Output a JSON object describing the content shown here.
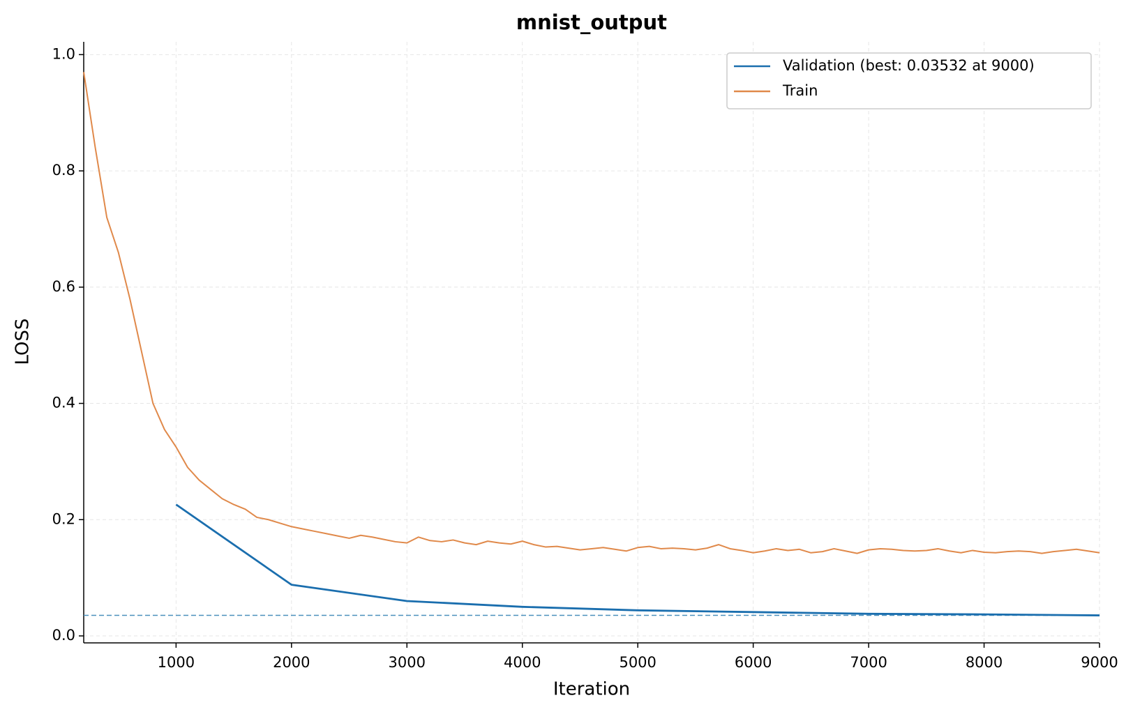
{
  "chart_data": {
    "type": "line",
    "title": "mnist_output",
    "x_label": "Iteration",
    "y_label": "LOSS",
    "xlim": [
      200,
      9000
    ],
    "ylim": [
      -0.012,
      1.022
    ],
    "xticks": [
      1000,
      2000,
      3000,
      4000,
      5000,
      6000,
      7000,
      8000,
      9000
    ],
    "yticks": [
      {
        "value": 0,
        "label": "0.0"
      },
      0.2,
      0.4,
      0.6,
      0.8,
      {
        "value": 1,
        "label": "1.0"
      }
    ],
    "grid": true,
    "legend": "upper right",
    "hline": {
      "value": 0.03532,
      "color": "#4a8fbd",
      "style": "dashed"
    },
    "series": [
      {
        "name": "Validation (best: 0.03532 at 9000)",
        "color": "#1a6eae",
        "x": [
          1000,
          2000,
          3000,
          4000,
          5000,
          6000,
          7000,
          8000,
          9000
        ],
        "values": [
          0.226,
          0.088,
          0.06,
          0.05,
          0.044,
          0.041,
          0.038,
          0.037,
          0.03532
        ]
      },
      {
        "name": "Train",
        "color": "#e0894a",
        "x": [
          200,
          300,
          400,
          500,
          600,
          700,
          800,
          900,
          1000,
          1100,
          1200,
          1300,
          1400,
          1500,
          1600,
          1700,
          1800,
          1900,
          2000,
          2100,
          2200,
          2300,
          2400,
          2500,
          2600,
          2700,
          2800,
          2900,
          3000,
          3100,
          3200,
          3300,
          3400,
          3500,
          3600,
          3700,
          3800,
          3900,
          4000,
          4100,
          4200,
          4300,
          4400,
          4500,
          4600,
          4700,
          4800,
          4900,
          5000,
          5100,
          5200,
          5300,
          5400,
          5500,
          5600,
          5700,
          5800,
          5900,
          6000,
          6100,
          6200,
          6300,
          6400,
          6500,
          6600,
          6700,
          6800,
          6900,
          7000,
          7100,
          7200,
          7300,
          7400,
          7500,
          7600,
          7700,
          7800,
          7900,
          8000,
          8100,
          8200,
          8300,
          8400,
          8500,
          8600,
          8700,
          8800,
          8900,
          9000
        ],
        "values": [
          0.97,
          0.84,
          0.72,
          0.66,
          0.58,
          0.49,
          0.4,
          0.355,
          0.325,
          0.29,
          0.268,
          0.252,
          0.236,
          0.226,
          0.218,
          0.204,
          0.2,
          0.194,
          0.188,
          0.184,
          0.18,
          0.176,
          0.172,
          0.168,
          0.173,
          0.17,
          0.166,
          0.162,
          0.16,
          0.17,
          0.164,
          0.162,
          0.165,
          0.16,
          0.157,
          0.163,
          0.16,
          0.158,
          0.163,
          0.157,
          0.153,
          0.154,
          0.151,
          0.148,
          0.15,
          0.152,
          0.149,
          0.146,
          0.152,
          0.154,
          0.15,
          0.151,
          0.15,
          0.148,
          0.151,
          0.157,
          0.15,
          0.147,
          0.143,
          0.146,
          0.15,
          0.147,
          0.149,
          0.143,
          0.145,
          0.15,
          0.146,
          0.142,
          0.148,
          0.15,
          0.149,
          0.147,
          0.146,
          0.147,
          0.15,
          0.146,
          0.143,
          0.147,
          0.144,
          0.143,
          0.145,
          0.146,
          0.145,
          0.142,
          0.145,
          0.147,
          0.149,
          0.146,
          0.143
        ]
      }
    ]
  }
}
